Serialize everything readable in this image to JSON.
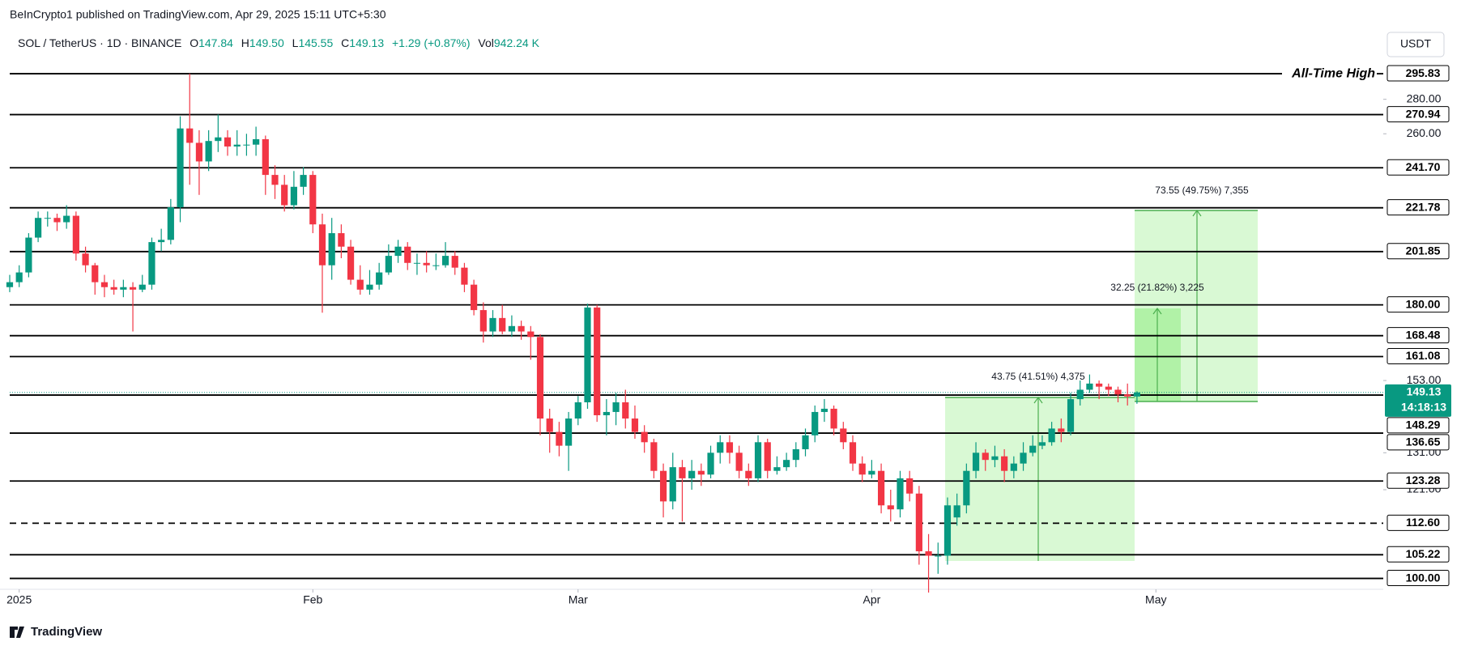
{
  "header": {
    "publisher": "BeInCrypto1 published on TradingView.com, Apr 29, 2025 15:11 UTC+5:30"
  },
  "chart_data": {
    "type": "candlestick",
    "symbol": "SOL / TetherUS · 1D · BINANCE",
    "legend": {
      "o_label": "O",
      "o": "147.84",
      "h_label": "H",
      "h": "149.50",
      "l_label": "L",
      "l": "145.55",
      "c_label": "C",
      "c": "149.13",
      "change": "+1.29 (+0.87%)",
      "vol_label": "Vol",
      "vol": "942.24 K"
    },
    "currency": "USDT",
    "open": [
      187,
      189,
      193,
      208,
      217,
      217,
      215,
      218,
      201,
      196,
      189,
      187,
      186,
      187,
      186,
      188,
      206,
      207,
      222,
      263,
      255,
      245,
      256,
      258,
      253,
      254,
      254,
      257,
      238,
      233,
      223,
      232,
      238,
      214,
      196,
      210,
      204,
      190,
      186,
      188,
      193,
      200,
      204,
      197,
      197,
      196,
      196,
      200,
      195,
      188,
      178,
      170,
      175,
      170,
      172,
      170,
      168,
      141,
      137,
      133,
      141,
      146,
      179,
      142,
      143,
      146,
      141,
      137,
      134,
      126,
      118,
      127,
      124,
      126,
      125,
      131,
      134,
      131,
      126,
      124,
      134,
      126,
      127,
      129,
      132,
      136,
      143,
      144,
      138,
      134,
      128,
      125,
      126,
      117,
      116,
      124,
      120,
      106,
      105,
      105,
      114,
      117,
      126,
      131,
      129,
      130,
      126,
      128,
      131,
      133,
      134,
      138,
      137,
      147,
      150,
      152,
      151,
      150,
      148.5,
      147.84
    ],
    "high": [
      192,
      196,
      210,
      220,
      220,
      219,
      223,
      220,
      204,
      197,
      192,
      190,
      190,
      189,
      192,
      208,
      212,
      226,
      270,
      295.8,
      262,
      262,
      271,
      262,
      262,
      260,
      264,
      259,
      243,
      238,
      240,
      242,
      240,
      219,
      217,
      214,
      207,
      196,
      194,
      197,
      205,
      207,
      206,
      201,
      202,
      201,
      206,
      202,
      197,
      190,
      181,
      178,
      180,
      176,
      174,
      172,
      169,
      144,
      140,
      143,
      148,
      180.5,
      180,
      147,
      149,
      150,
      145,
      139,
      135,
      128,
      131,
      129,
      129,
      128,
      133,
      136,
      136,
      133,
      128,
      136,
      135,
      130,
      131,
      134,
      138,
      145,
      147,
      145,
      140,
      136,
      130,
      129,
      128,
      121,
      126,
      126,
      122,
      110,
      108,
      119,
      120,
      128,
      134,
      132,
      133,
      132,
      130,
      134,
      136,
      136,
      140,
      141,
      149,
      153,
      155,
      153,
      152,
      151,
      152,
      149.5
    ],
    "low": [
      185,
      187,
      191,
      206,
      213,
      211,
      212,
      198,
      193,
      184,
      183,
      184,
      183,
      170,
      185,
      186,
      202,
      205,
      215,
      233,
      228,
      240,
      250,
      248,
      248,
      248,
      248,
      228,
      226,
      220,
      221,
      228,
      210,
      177,
      190,
      199,
      188,
      184,
      184,
      186,
      192,
      197,
      194,
      192,
      193,
      194,
      195,
      192,
      185,
      176,
      166,
      168,
      169,
      168,
      167,
      160,
      136,
      131,
      130,
      126,
      139,
      144,
      140,
      136,
      139,
      138,
      135,
      131,
      124,
      114,
      116,
      113,
      121,
      122,
      124,
      128,
      128,
      124,
      122,
      123,
      124,
      125,
      126,
      127,
      130,
      134,
      140,
      136,
      132,
      126,
      123,
      124,
      115,
      113,
      114,
      118,
      103,
      97,
      101,
      103,
      112,
      115,
      124,
      126,
      127,
      123,
      124,
      126,
      130,
      132,
      133,
      134,
      136,
      145,
      149,
      147,
      148,
      146,
      145,
      145.55
    ],
    "close": [
      189,
      193,
      208,
      217,
      217,
      215,
      218,
      201,
      196,
      189,
      187,
      186,
      187,
      186,
      188,
      206,
      207,
      222,
      263,
      255,
      245,
      256,
      258,
      253,
      254,
      254,
      257,
      238,
      233,
      223,
      232,
      238,
      214,
      196,
      210,
      204,
      190,
      186,
      188,
      193,
      200,
      204,
      197,
      197,
      196,
      196,
      200,
      195,
      188,
      178,
      170,
      175,
      170,
      172,
      170,
      168,
      141,
      137,
      133,
      141,
      146,
      179,
      142,
      143,
      146,
      141,
      137,
      134,
      126,
      118,
      127,
      124,
      126,
      125,
      131,
      134,
      131,
      126,
      124,
      134,
      126,
      127,
      129,
      132,
      136,
      143,
      144,
      138,
      134,
      128,
      125,
      126,
      117,
      116,
      124,
      120,
      106,
      105,
      105,
      117,
      117,
      126,
      131,
      129,
      130,
      126,
      128,
      131,
      133,
      134,
      138,
      137,
      147,
      150,
      152,
      151,
      150,
      148.5,
      147.84,
      149.13
    ],
    "up_color": "#089981",
    "down_color": "#f23645",
    "xlim": [
      0,
      145
    ],
    "xticks": [
      {
        "value": 1,
        "label": "2025"
      },
      {
        "value": 32,
        "label": "Feb"
      },
      {
        "value": 60,
        "label": "Mar"
      },
      {
        "value": 91,
        "label": "Apr"
      },
      {
        "value": 121,
        "label": "May"
      }
    ],
    "ylim": [
      98.2,
      307.4
    ],
    "log_scale": true,
    "grid": false,
    "yticks": [
      {
        "value": 280,
        "label": "280.00"
      },
      {
        "value": 260,
        "label": "260.00"
      },
      {
        "value": 153,
        "label": "153.00"
      },
      {
        "value": 131,
        "label": "131.00"
      },
      {
        "value": 121,
        "label": "121.00"
      }
    ],
    "levels": [
      295.83,
      270.94,
      {
        "value": 241.7,
        "label": "241.70"
      },
      221.78,
      201.85,
      {
        "value": 180,
        "label": "180.00"
      },
      168.48,
      161.08,
      148.29,
      136.65,
      123.28,
      105.22,
      {
        "value": 100,
        "label": "100.00"
      }
    ],
    "dashed_levels": [
      {
        "value": 112.6,
        "label": "112.60"
      }
    ],
    "last_price": 149.13,
    "countdown": "14:18:13",
    "annotations": {
      "ath": "All-Time High",
      "measure_1": "73.55 (49.75%) 7,355",
      "measure_2": "32.25 (21.82%) 3,225",
      "measure_3": "43.75 (41.51%) 4,375"
    }
  },
  "footer": {
    "brand": "TradingView"
  }
}
